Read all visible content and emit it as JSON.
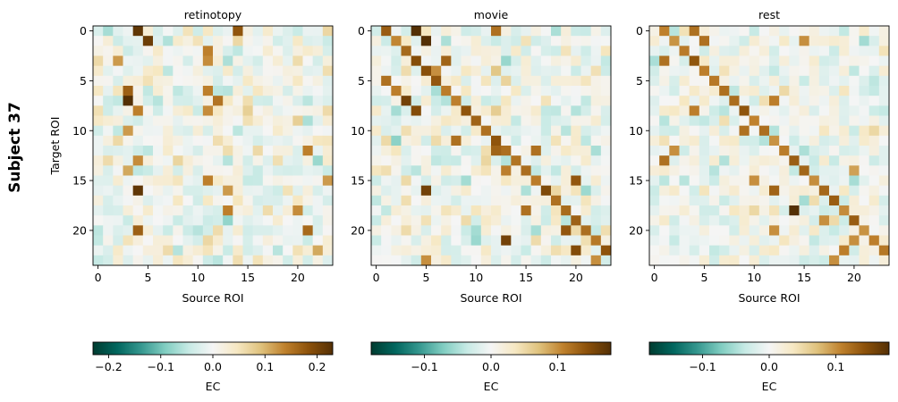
{
  "figure": {
    "row_label": "Subject 37"
  },
  "colors": {
    "cmap": [
      "#003c30",
      "#01665e",
      "#35978f",
      "#80cdc1",
      "#c7eae5",
      "#f5f5f5",
      "#f6e8c3",
      "#dfc27d",
      "#bf812d",
      "#8c510a",
      "#543005"
    ],
    "axis": "#000000"
  },
  "chart_data": [
    {
      "type": "heatmap",
      "title": "retinotopy",
      "xlabel": "Source ROI",
      "ylabel": "Target ROI",
      "n": 24,
      "x_ticks": [
        0,
        5,
        10,
        15,
        20
      ],
      "y_ticks": [
        0,
        5,
        10,
        15,
        20
      ],
      "seed": 37,
      "vmax": 0.23,
      "diag_offset": 0,
      "diag_strength": 0.0,
      "noise": 0.055,
      "strong": [
        [
          0,
          4,
          0.22
        ],
        [
          0,
          14,
          0.18
        ],
        [
          1,
          5,
          0.21
        ],
        [
          2,
          11,
          0.14
        ],
        [
          3,
          2,
          0.12
        ],
        [
          3,
          11,
          0.13
        ],
        [
          6,
          3,
          0.17
        ],
        [
          6,
          11,
          0.14
        ],
        [
          7,
          3,
          0.23
        ],
        [
          7,
          12,
          0.15
        ],
        [
          8,
          4,
          0.14
        ],
        [
          8,
          11,
          0.13
        ],
        [
          10,
          3,
          0.12
        ],
        [
          12,
          21,
          0.14
        ],
        [
          13,
          4,
          0.13
        ],
        [
          14,
          3,
          0.11
        ],
        [
          15,
          11,
          0.14
        ],
        [
          16,
          4,
          0.22
        ],
        [
          16,
          13,
          0.12
        ],
        [
          18,
          13,
          0.14
        ],
        [
          18,
          20,
          0.13
        ],
        [
          20,
          4,
          0.17
        ],
        [
          20,
          21,
          0.16
        ],
        [
          22,
          22,
          0.11
        ],
        [
          15,
          23,
          0.12
        ]
      ],
      "colorbar": {
        "label": "EC",
        "ticks": [
          "−0.2",
          "−0.1",
          "0.0",
          "0.1",
          "0.2"
        ],
        "tick_values": [
          -0.2,
          -0.1,
          0.0,
          0.1,
          0.2
        ],
        "vmin": -0.23,
        "vmax": 0.23
      }
    },
    {
      "type": "heatmap",
      "title": "movie",
      "xlabel": "Source ROI",
      "ylabel": "",
      "n": 24,
      "x_ticks": [
        0,
        5,
        10,
        15,
        20
      ],
      "y_ticks": [
        0,
        5,
        10,
        15,
        20
      ],
      "seed": 91,
      "vmax": 0.18,
      "diag_offset": 1,
      "diag_strength": 0.14,
      "noise": 0.045,
      "strong": [
        [
          0,
          4,
          0.18
        ],
        [
          1,
          5,
          0.18
        ],
        [
          0,
          12,
          0.12
        ],
        [
          3,
          7,
          0.13
        ],
        [
          4,
          6,
          0.1
        ],
        [
          5,
          1,
          0.12
        ],
        [
          6,
          2,
          0.11
        ],
        [
          7,
          3,
          0.16
        ],
        [
          8,
          4,
          0.15
        ],
        [
          9,
          10,
          0.13
        ],
        [
          11,
          8,
          0.12
        ],
        [
          12,
          16,
          0.12
        ],
        [
          14,
          13,
          0.11
        ],
        [
          15,
          20,
          0.14
        ],
        [
          16,
          5,
          0.16
        ],
        [
          17,
          18,
          0.12
        ],
        [
          18,
          15,
          0.12
        ],
        [
          20,
          19,
          0.14
        ],
        [
          21,
          13,
          0.16
        ],
        [
          22,
          20,
          0.15
        ],
        [
          23,
          5,
          0.1
        ],
        [
          23,
          22,
          0.1
        ],
        [
          10,
          11,
          0.12
        ],
        [
          12,
          12,
          0.13
        ]
      ],
      "colorbar": {
        "label": "EC",
        "ticks": [
          "−0.1",
          "0.0",
          "0.1"
        ],
        "tick_values": [
          -0.1,
          0.0,
          0.1
        ],
        "vmin": -0.18,
        "vmax": 0.18
      }
    },
    {
      "type": "heatmap",
      "title": "rest",
      "xlabel": "Source ROI",
      "ylabel": "",
      "n": 24,
      "x_ticks": [
        0,
        5,
        10,
        15,
        20
      ],
      "y_ticks": [
        0,
        5,
        10,
        15,
        20
      ],
      "seed": 7,
      "vmax": 0.18,
      "diag_offset": 1,
      "diag_strength": 0.13,
      "noise": 0.04,
      "strong": [
        [
          0,
          4,
          0.12
        ],
        [
          1,
          5,
          0.12
        ],
        [
          1,
          15,
          0.1
        ],
        [
          3,
          1,
          0.12
        ],
        [
          8,
          4,
          0.11
        ],
        [
          7,
          12,
          0.11
        ],
        [
          10,
          9,
          0.12
        ],
        [
          12,
          2,
          0.1
        ],
        [
          13,
          1,
          0.12
        ],
        [
          15,
          10,
          0.1
        ],
        [
          16,
          12,
          0.13
        ],
        [
          18,
          14,
          0.18
        ],
        [
          19,
          17,
          0.1
        ],
        [
          20,
          12,
          0.1
        ],
        [
          21,
          20,
          0.1
        ],
        [
          22,
          19,
          0.11
        ],
        [
          23,
          18,
          0.1
        ],
        [
          14,
          20,
          0.09
        ]
      ],
      "colorbar": {
        "label": "EC",
        "ticks": [
          "−0.1",
          "0.0",
          "0.1"
        ],
        "tick_values": [
          -0.1,
          0.0,
          0.1
        ],
        "vmin": -0.18,
        "vmax": 0.18
      }
    }
  ]
}
